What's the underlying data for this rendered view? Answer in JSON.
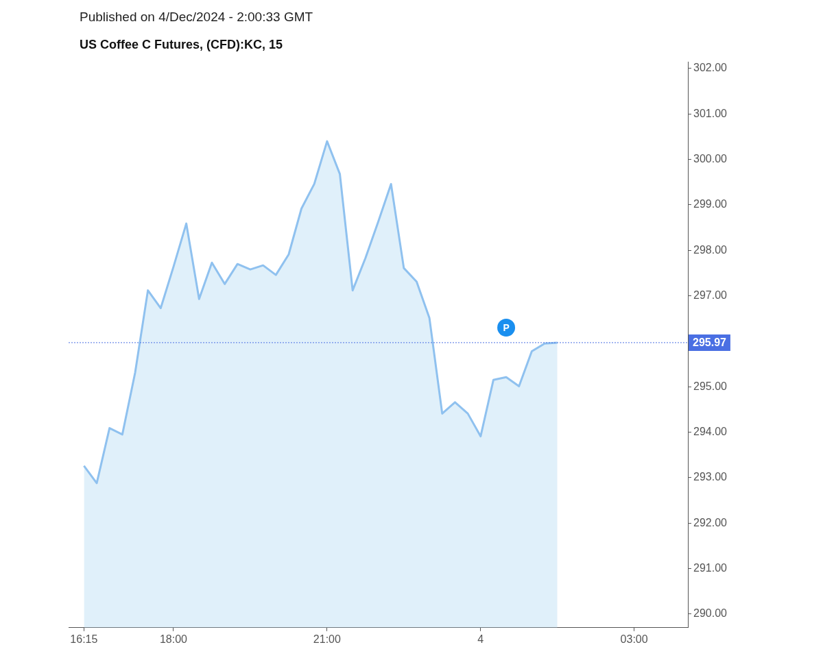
{
  "chart_data": {
    "type": "area",
    "title": "US Coffee C Futures, (CFD):KC, 15",
    "subtitle": "Published on 4/Dec/2024 - 2:00:33 GMT",
    "x": [
      "2024-12-03T16:15",
      "2024-12-03T16:30",
      "2024-12-03T16:45",
      "2024-12-03T17:00",
      "2024-12-03T17:15",
      "2024-12-03T17:30",
      "2024-12-03T17:45",
      "2024-12-03T18:00",
      "2024-12-03T18:15",
      "2024-12-03T18:30",
      "2024-12-03T18:45",
      "2024-12-03T19:00",
      "2024-12-03T19:15",
      "2024-12-03T19:30",
      "2024-12-03T19:45",
      "2024-12-03T20:00",
      "2024-12-03T20:15",
      "2024-12-03T20:30",
      "2024-12-03T20:45",
      "2024-12-03T21:00",
      "2024-12-03T21:15",
      "2024-12-03T21:30",
      "2024-12-03T21:45",
      "2024-12-03T22:00",
      "2024-12-03T22:15",
      "2024-12-03T22:30",
      "2024-12-03T22:45",
      "2024-12-03T23:00",
      "2024-12-03T23:15",
      "2024-12-03T23:30",
      "2024-12-03T23:45",
      "2024-12-04T00:00",
      "2024-12-04T00:15",
      "2024-12-04T00:30",
      "2024-12-04T00:45",
      "2024-12-04T01:00",
      "2024-12-04T01:15",
      "2024-12-04T01:30"
    ],
    "series": [
      {
        "color": "#8fc1ef",
        "values": [
          293.26,
          292.88,
          294.09,
          293.95,
          295.31,
          297.12,
          296.73,
          297.64,
          298.59,
          296.93,
          297.73,
          297.26,
          297.7,
          297.58,
          297.67,
          297.46,
          297.91,
          298.92,
          299.46,
          300.4,
          299.68,
          297.12,
          297.83,
          298.63,
          299.46,
          297.61,
          297.31,
          296.51,
          294.41,
          294.66,
          294.41,
          293.91,
          295.15,
          295.21,
          295.01,
          295.78,
          295.95,
          295.97
        ]
      }
    ],
    "xlim": [
      "2024-12-03T15:57",
      "2024-12-04T04:03"
    ],
    "xticks": [
      {
        "value": "2024-12-03T16:15",
        "label": "16:15"
      },
      {
        "value": "2024-12-03T18:00",
        "label": "18:00"
      },
      {
        "value": "2024-12-03T21:00",
        "label": "21:00"
      },
      {
        "value": "2024-12-04",
        "label": "4"
      },
      {
        "value": "2024-12-04T03:00",
        "label": "03:00"
      }
    ],
    "ylim": [
      289.7,
      302.15
    ],
    "yticks": [
      {
        "value": 290,
        "label": "290.00"
      },
      {
        "value": 291,
        "label": "291.00"
      },
      {
        "value": 292,
        "label": "292.00"
      },
      {
        "value": 293,
        "label": "293.00"
      },
      {
        "value": 294,
        "label": "294.00"
      },
      {
        "value": 295,
        "label": "295.00"
      },
      {
        "value": 296,
        "label": null
      },
      {
        "value": 297,
        "label": "297.00"
      },
      {
        "value": 298,
        "label": "298.00"
      },
      {
        "value": 299,
        "label": "299.00"
      },
      {
        "value": 300,
        "label": "300.00"
      },
      {
        "value": 301,
        "label": "301.00"
      },
      {
        "value": 302,
        "label": "302.00"
      }
    ],
    "ref_lines": [
      {
        "axis": "y",
        "value": 295.97,
        "label": "295.97",
        "color": "#4a6fe3",
        "line_style": "dotted"
      }
    ],
    "annotations": [
      {
        "text": "P",
        "x": "2024-12-04T00:30",
        "y": 296.3
      }
    ],
    "grid": false,
    "legend": false,
    "marker": "none",
    "line_style": "solid"
  }
}
